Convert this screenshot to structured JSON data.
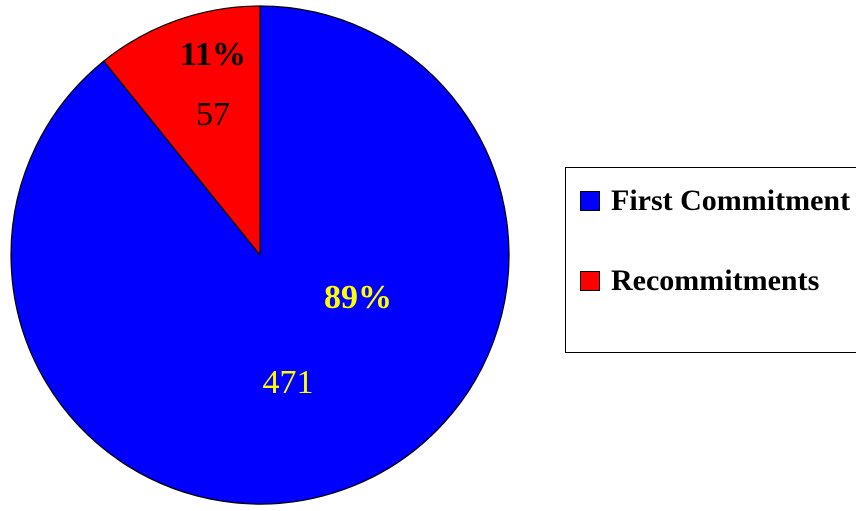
{
  "chart_data": {
    "type": "pie",
    "title": "",
    "slices": [
      {
        "name": "First Commitment",
        "value": 471,
        "percent_label": "89%",
        "value_label": "471",
        "color": "#0000ff",
        "label_color": "#ffff00"
      },
      {
        "name": "Recommitments",
        "value": 57,
        "percent_label": "11%",
        "value_label": "57",
        "color": "#ff0000",
        "label_color": "#000000"
      }
    ],
    "start_angle_deg": 0,
    "direction": "clockwise",
    "legend_placement": "right"
  },
  "legend": {
    "items": [
      {
        "label": "First Commitment",
        "color": "#0000ff"
      },
      {
        "label": "Recommitments",
        "color": "#ff0000"
      }
    ]
  }
}
